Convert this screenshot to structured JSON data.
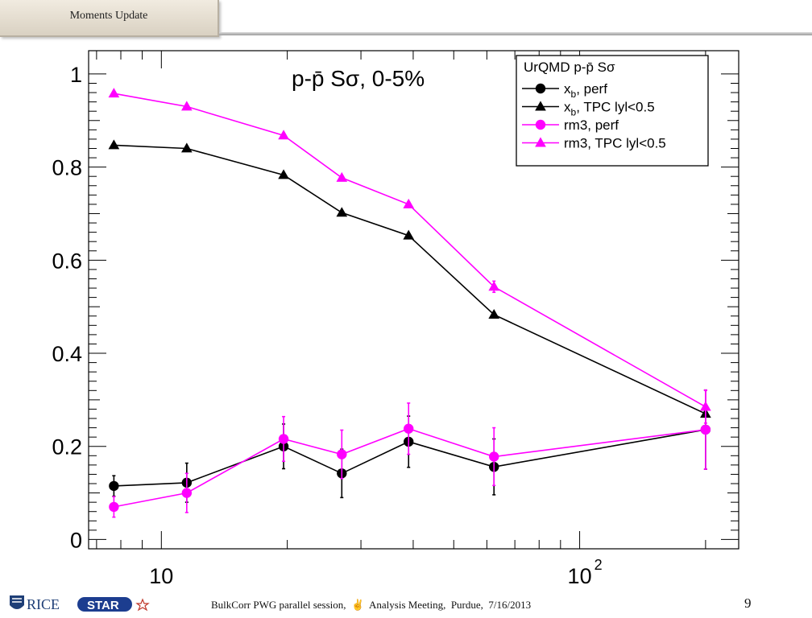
{
  "header": {
    "title": "Moments Update"
  },
  "footer": {
    "text": "BulkCorr PWG parallel session,  ✌  Analysis Meeting,  Purdue,  7/16/2013",
    "page_number": "9",
    "logo_left": "RICE",
    "logo_right": "STAR"
  },
  "chart_data": {
    "type": "line",
    "title": "p-p̄ Sσ, 0-5%",
    "xlabel": "",
    "ylabel": "",
    "xscale": "log",
    "xlim": [
      6.7,
      240
    ],
    "ylim": [
      -0.02,
      1.05
    ],
    "yticks": [
      0,
      0.2,
      0.4,
      0.6,
      0.8,
      1
    ],
    "ytick_labels": [
      "0",
      "0.2",
      "0.4",
      "0.6",
      "0.8",
      "1"
    ],
    "xticks_major": [
      10,
      100
    ],
    "xtick_labels": [
      "10",
      "10"
    ],
    "xtick_exponents": [
      "",
      "2"
    ],
    "grid": false,
    "legend_position": "top-right",
    "legend_header": "UrQMD p-p̄ Sσ",
    "x": [
      7.7,
      11.5,
      19.6,
      27,
      39,
      62.4,
      200
    ],
    "series": [
      {
        "label": "x",
        "label_sub": "b",
        "label_rest": ", perf",
        "marker": "circle",
        "color": "#000000",
        "values": [
          0.115,
          0.122,
          0.2,
          0.142,
          0.21,
          0.156,
          0.236
        ],
        "errors": [
          0.022,
          0.042,
          0.048,
          0.052,
          0.055,
          0.06,
          0.085
        ]
      },
      {
        "label": "x",
        "label_sub": "b",
        "label_rest": ", TPC lyl<0.5",
        "marker": "triangle",
        "color": "#000000",
        "values": [
          0.847,
          0.84,
          0.783,
          0.702,
          0.653,
          0.483,
          0.27
        ],
        "errors": [
          0,
          0,
          0,
          0,
          0,
          0,
          0
        ]
      },
      {
        "label": "rm3",
        "label_sub": "",
        "label_rest": ", perf",
        "marker": "circle",
        "color": "#ff00ff",
        "values": [
          0.07,
          0.1,
          0.216,
          0.183,
          0.238,
          0.178,
          0.236
        ],
        "errors": [
          0.022,
          0.042,
          0.048,
          0.052,
          0.055,
          0.062,
          0.085
        ]
      },
      {
        "label": "rm3",
        "label_sub": "",
        "label_rest": ", TPC lyl<0.5",
        "marker": "triangle",
        "color": "#ff00ff",
        "values": [
          0.958,
          0.93,
          0.868,
          0.777,
          0.72,
          0.543,
          0.285
        ],
        "errors": [
          0,
          0,
          0,
          0,
          0.005,
          0.012,
          0.035
        ]
      }
    ]
  }
}
